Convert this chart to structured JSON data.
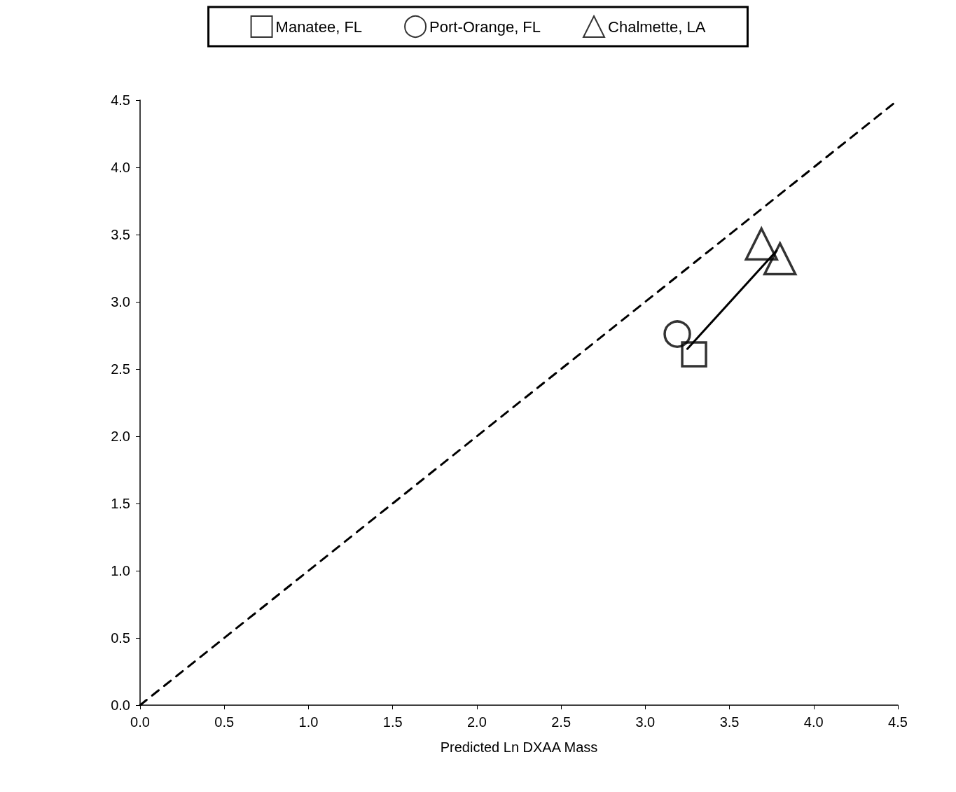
{
  "chart_data": {
    "type": "scatter",
    "xlabel": "Predicted Ln DXAA Mass",
    "xlim": [
      0,
      4.5
    ],
    "ylim": [
      0,
      4.5
    ],
    "xticks": [
      {
        "value": 0,
        "label": "0.0"
      },
      {
        "value": 0.5,
        "label": "0.5"
      },
      {
        "value": 1,
        "label": "1.0"
      },
      {
        "value": 1.5,
        "label": "1.5"
      },
      {
        "value": 2,
        "label": "2.0"
      },
      {
        "value": 2.5,
        "label": "2.5"
      },
      {
        "value": 3,
        "label": "3.0"
      },
      {
        "value": 3.5,
        "label": "3.5"
      },
      {
        "value": 4,
        "label": "4.0"
      },
      {
        "value": 4.5,
        "label": "4.5"
      }
    ],
    "yticks": [
      {
        "value": 0,
        "label": "0.0"
      },
      {
        "value": 0.5,
        "label": "0.5"
      },
      {
        "value": 1,
        "label": "1.0"
      },
      {
        "value": 1.5,
        "label": "1.5"
      },
      {
        "value": 2,
        "label": "2.0"
      },
      {
        "value": 2.5,
        "label": "2.5"
      },
      {
        "value": 3,
        "label": "3.0"
      },
      {
        "value": 3.5,
        "label": "3.5"
      },
      {
        "value": 4,
        "label": "4.0"
      },
      {
        "value": 4.5,
        "label": "4.5"
      }
    ],
    "grid": false,
    "legend": "top",
    "series": [
      {
        "name": "Manatee, FL",
        "color": "#000000",
        "marker": "square",
        "x": [
          3.29
        ],
        "values": [
          2.61
        ]
      },
      {
        "name": "Port-Orange, FL",
        "color": "#000000",
        "marker": "circle",
        "x": [
          3.19
        ],
        "values": [
          2.76
        ]
      },
      {
        "name": "Chalmette, LA",
        "color": "#000000",
        "marker": "triangle",
        "x": [
          3.69,
          3.8
        ],
        "values": [
          3.43,
          3.32
        ]
      },
      {
        "type": "line",
        "color": "#000000",
        "marker": "none",
        "line_style": "dashed",
        "x": [
          0,
          4.5
        ],
        "values": [
          0,
          4.5
        ]
      },
      {
        "type": "line",
        "color": "#000000",
        "marker": "none",
        "line_style": "solid",
        "x": [
          3.25,
          3.78
        ],
        "values": [
          2.65,
          3.38
        ]
      }
    ]
  }
}
